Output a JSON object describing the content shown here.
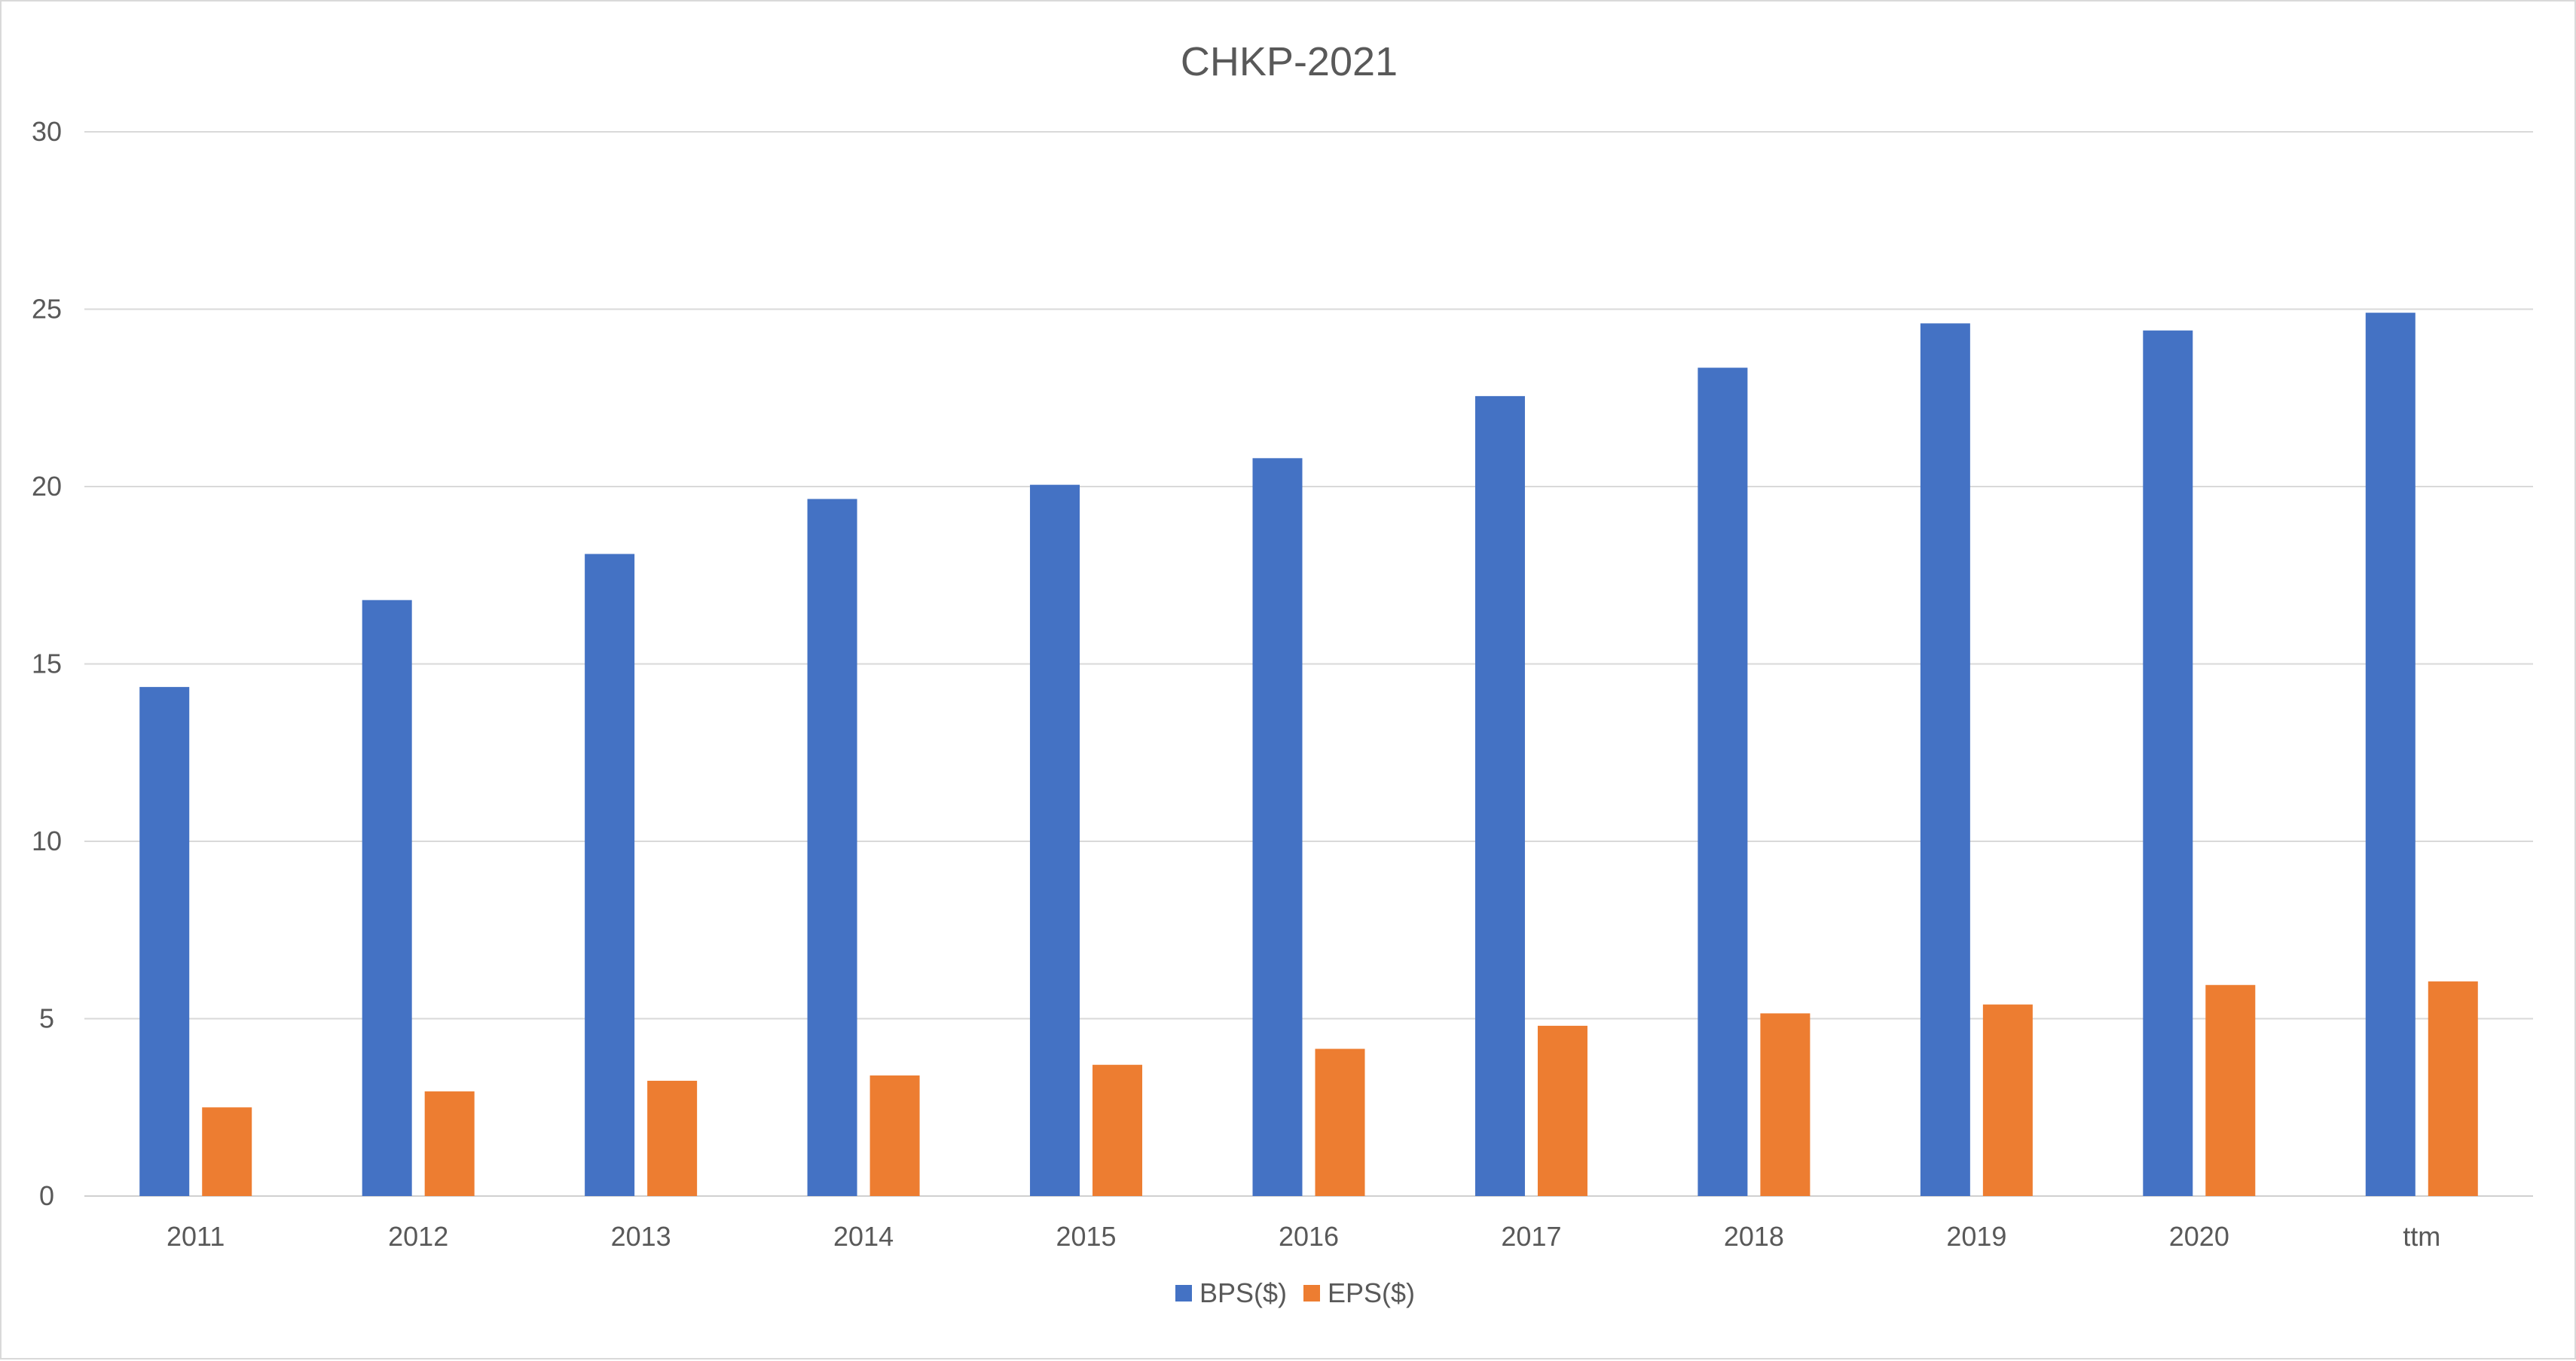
{
  "chart_data": {
    "type": "bar",
    "title": "CHKP-2021",
    "xlabel": "",
    "ylabel": "",
    "categories": [
      "2011",
      "2012",
      "2013",
      "2014",
      "2015",
      "2016",
      "2017",
      "2018",
      "2019",
      "2020",
      "ttm"
    ],
    "series": [
      {
        "name": "BPS($)",
        "color": "#4472C4",
        "values": [
          14.35,
          16.8,
          18.1,
          19.65,
          20.05,
          20.8,
          22.55,
          23.35,
          24.6,
          24.4,
          24.9
        ]
      },
      {
        "name": "EPS($)",
        "color": "#ED7D31",
        "values": [
          2.5,
          2.95,
          3.25,
          3.4,
          3.7,
          4.15,
          4.8,
          5.15,
          5.4,
          5.95,
          6.05
        ]
      }
    ],
    "ylim": [
      0,
      30
    ],
    "yticks": [
      "0",
      "5",
      "10",
      "15",
      "20",
      "25",
      "30"
    ],
    "grid": true,
    "legend": "bottom-center"
  }
}
